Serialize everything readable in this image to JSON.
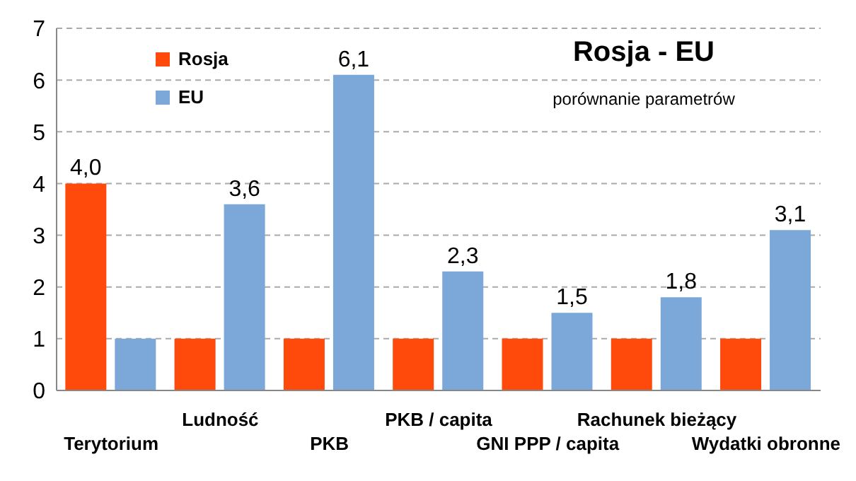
{
  "chart_data": {
    "type": "bar",
    "title": "Rosja - EU",
    "subtitle": "porównanie parametrów",
    "categories": [
      "Terytorium",
      "Ludność",
      "PKB",
      "PKB / capita",
      "GNI PPP / capita",
      "Rachunek bieżący",
      "Wydatki obronne"
    ],
    "series": [
      {
        "name": "Rosja",
        "color": "#ff4a0c",
        "values": [
          4.0,
          1,
          1,
          1,
          1,
          1,
          1
        ],
        "value_labels": [
          "4,0",
          null,
          null,
          null,
          null,
          null,
          null
        ]
      },
      {
        "name": "EU",
        "color": "#7ba7d9",
        "values": [
          1,
          3.6,
          6.1,
          2.3,
          1.5,
          1.8,
          3.1
        ],
        "value_labels": [
          null,
          "3,6",
          "6,1",
          "2,3",
          "1,5",
          "1,8",
          "3,1"
        ]
      }
    ],
    "ylim": [
      0,
      7
    ],
    "yticks": [
      0,
      1,
      2,
      3,
      4,
      5,
      6,
      7
    ],
    "grid": "y",
    "legend": "top left"
  }
}
